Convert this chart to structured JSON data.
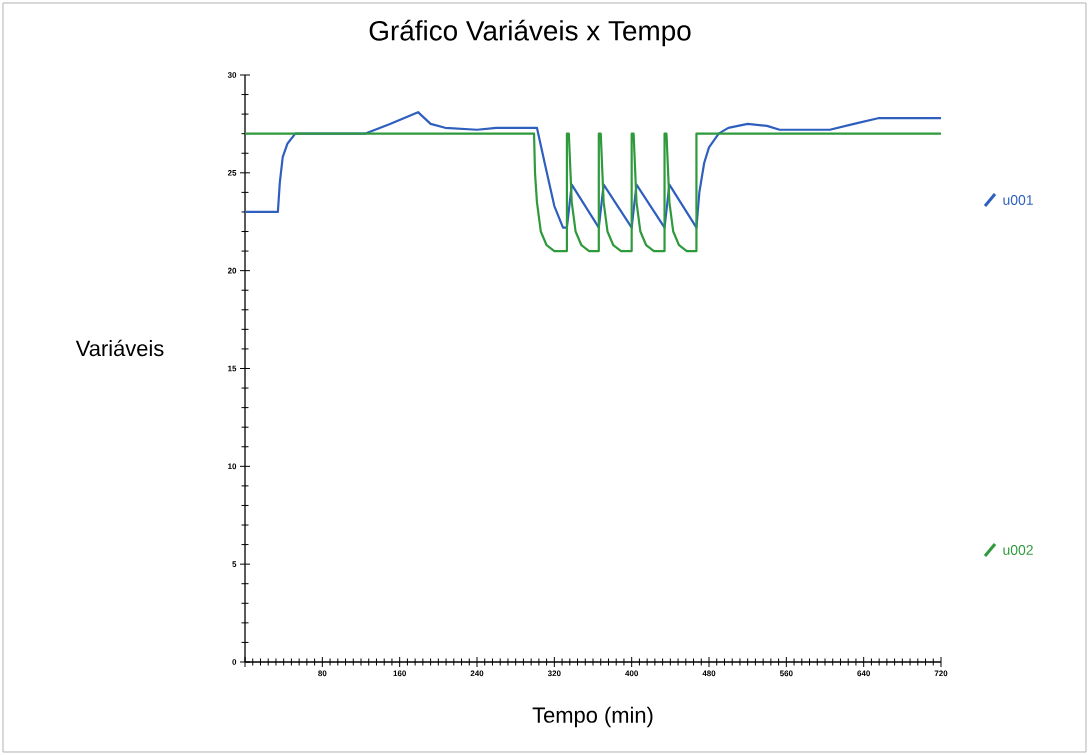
{
  "chart_data": {
    "type": "line",
    "title": "Gráfico Variáveis x Tempo",
    "xlabel": "Tempo (min)",
    "ylabel": "Variáveis",
    "xlim": [
      0,
      720
    ],
    "xticks": [
      {
        "value": 0,
        "label": null
      },
      80,
      160,
      240,
      320,
      400,
      480,
      560,
      640,
      720
    ],
    "ylim": [
      0,
      30
    ],
    "yticks": [
      0,
      5,
      10,
      15,
      20,
      25,
      30
    ],
    "legend": "right",
    "marker": "none",
    "line_style": "solid",
    "series": [
      {
        "name": "u001",
        "color": "#2e5fbf",
        "x": [
          0,
          34,
          36,
          39,
          44,
          52,
          124,
          150,
          179,
          192,
          207,
          240,
          260,
          302,
          310,
          320,
          329,
          333,
          338,
          366,
          371,
          400,
          405,
          434,
          439,
          467,
          470,
          475,
          480,
          490,
          500,
          520,
          540,
          553,
          605,
          630,
          656,
          720
        ],
        "values": [
          23,
          23,
          24.5,
          25.8,
          26.5,
          27,
          27,
          27.5,
          28.1,
          27.5,
          27.3,
          27.2,
          27.3,
          27.3,
          25.5,
          23.3,
          22.2,
          22.2,
          24.4,
          22.2,
          24.4,
          22.2,
          24.4,
          22.2,
          24.4,
          22.2,
          24,
          25.5,
          26.3,
          27,
          27.3,
          27.5,
          27.4,
          27.2,
          27.2,
          27.5,
          27.8,
          27.8
        ]
      },
      {
        "name": "u002",
        "color": "#2e9a3c",
        "x": [
          0,
          299,
          300,
          302,
          306,
          312,
          320,
          333,
          333,
          335,
          338,
          342,
          348,
          356,
          366,
          366,
          368,
          371,
          375,
          381,
          389,
          400,
          400,
          402,
          405,
          409,
          415,
          423,
          434,
          434,
          436,
          439,
          443,
          449,
          457,
          467,
          467,
          720
        ],
        "values": [
          27,
          27,
          25,
          23.5,
          22,
          21.3,
          21,
          21,
          27,
          27,
          23.5,
          22,
          21.3,
          21,
          21,
          27,
          27,
          23.5,
          22,
          21.3,
          21,
          21,
          27,
          27,
          23.5,
          22,
          21.3,
          21,
          21,
          27,
          27,
          23.5,
          22,
          21.3,
          21,
          21,
          27,
          27
        ]
      }
    ]
  }
}
